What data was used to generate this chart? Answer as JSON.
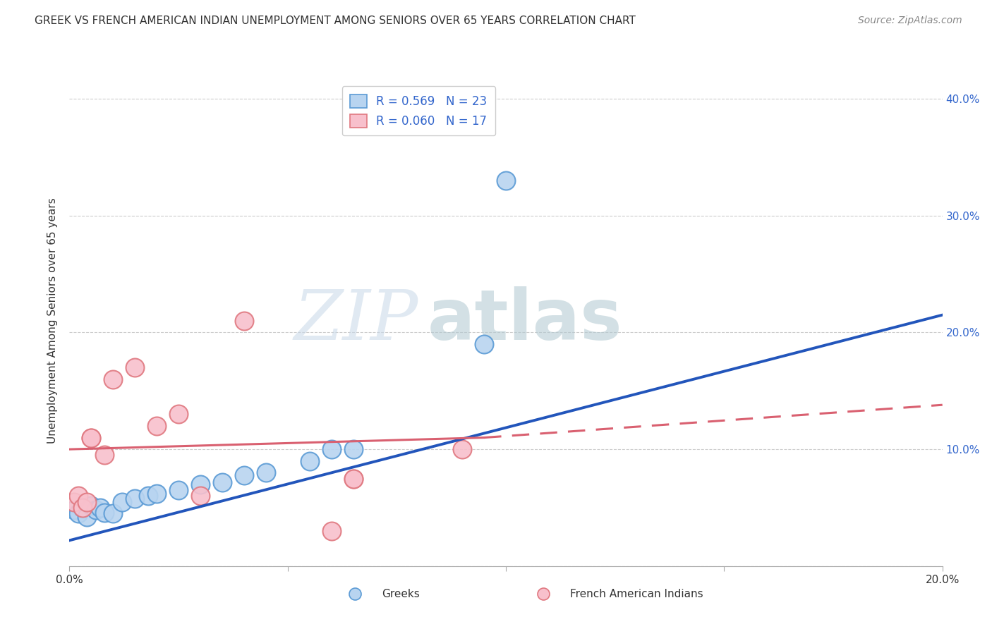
{
  "title": "GREEK VS FRENCH AMERICAN INDIAN UNEMPLOYMENT AMONG SENIORS OVER 65 YEARS CORRELATION CHART",
  "source": "Source: ZipAtlas.com",
  "ylabel": "Unemployment Among Seniors over 65 years",
  "xlim": [
    0.0,
    0.2
  ],
  "ylim": [
    0.0,
    0.42
  ],
  "legend_label1": "R = 0.569   N = 23",
  "legend_label2": "R = 0.060   N = 17",
  "watermark_zip": "ZIP",
  "watermark_atlas": "atlas",
  "blue_color": "#5b9bd5",
  "pink_color": "#f4a0b0",
  "blue_line_color": "#3366cc",
  "pink_line_color": "#e07080",
  "greek_points": [
    [
      0.001,
      0.048
    ],
    [
      0.002,
      0.045
    ],
    [
      0.003,
      0.05
    ],
    [
      0.004,
      0.042
    ],
    [
      0.005,
      0.052
    ],
    [
      0.006,
      0.048
    ],
    [
      0.007,
      0.05
    ],
    [
      0.008,
      0.046
    ],
    [
      0.01,
      0.045
    ],
    [
      0.012,
      0.055
    ],
    [
      0.015,
      0.058
    ],
    [
      0.018,
      0.06
    ],
    [
      0.02,
      0.062
    ],
    [
      0.025,
      0.065
    ],
    [
      0.03,
      0.07
    ],
    [
      0.035,
      0.072
    ],
    [
      0.04,
      0.078
    ],
    [
      0.045,
      0.08
    ],
    [
      0.055,
      0.09
    ],
    [
      0.06,
      0.1
    ],
    [
      0.065,
      0.1
    ],
    [
      0.095,
      0.19
    ],
    [
      0.1,
      0.33
    ]
  ],
  "french_points": [
    [
      0.001,
      0.055
    ],
    [
      0.002,
      0.06
    ],
    [
      0.003,
      0.05
    ],
    [
      0.004,
      0.055
    ],
    [
      0.005,
      0.11
    ],
    [
      0.005,
      0.11
    ],
    [
      0.008,
      0.095
    ],
    [
      0.01,
      0.16
    ],
    [
      0.015,
      0.17
    ],
    [
      0.02,
      0.12
    ],
    [
      0.025,
      0.13
    ],
    [
      0.03,
      0.06
    ],
    [
      0.04,
      0.21
    ],
    [
      0.06,
      0.03
    ],
    [
      0.065,
      0.075
    ],
    [
      0.065,
      0.075
    ],
    [
      0.09,
      0.1
    ]
  ],
  "blue_line": {
    "x0": 0.0,
    "y0": 0.022,
    "x1": 0.2,
    "y1": 0.215
  },
  "pink_line_solid": {
    "x0": 0.0,
    "y0": 0.1,
    "x1": 0.095,
    "y1": 0.11
  },
  "pink_line_dashed": {
    "x0": 0.095,
    "y0": 0.11,
    "x1": 0.2,
    "y1": 0.138
  }
}
